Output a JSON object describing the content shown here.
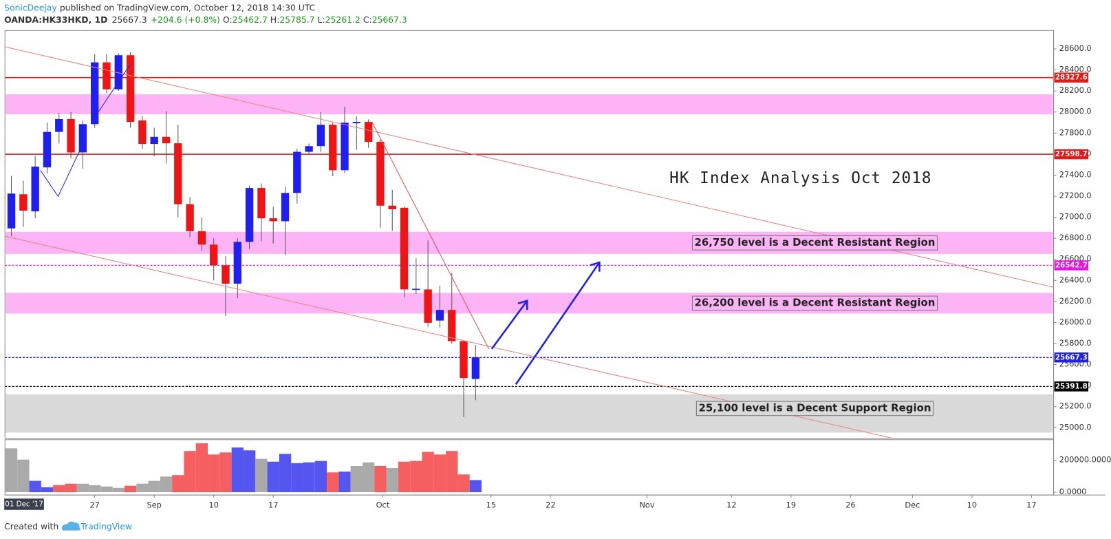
{
  "header": {
    "author": "SonicDeejay",
    "published": "published on TradingView.com, October 12, 2018 14:30 UTC",
    "symbol": "OANDA:HK33HKD, 1D",
    "last": 25667.3,
    "change": "+204.6 (+0.8%)",
    "ohlc": [
      {
        "label": "O:",
        "value": 25462.7
      },
      {
        "label": "H:",
        "value": 25785.7
      },
      {
        "label": "L:",
        "value": 25261.2
      },
      {
        "label": "C:",
        "value": 25667.3
      }
    ]
  },
  "chart_data": {
    "type": "candlestick",
    "title": "HK Index Analysis Oct 2018",
    "open": [
      26894,
      27218,
      27056,
      27474,
      27811,
      27933,
      27616,
      27885,
      28472,
      28216,
      28540,
      27920,
      27697,
      27764,
      27703,
      27124,
      26867,
      26740,
      26544,
      26368,
      26766,
      27278,
      26990,
      26962,
      27231,
      27622,
      27676,
      27879,
      27447,
      27893,
      27906,
      27717,
      27110,
      27090,
      26310,
      26314,
      26018,
      26119,
      25822,
      25462.7
    ],
    "high": [
      27393,
      27346,
      27582,
      27900,
      27990,
      28000,
      27920,
      28550,
      28550,
      28560,
      28570,
      27960,
      27850,
      28010,
      27880,
      27190,
      27000,
      26800,
      26630,
      26800,
      27300,
      27320,
      27100,
      27290,
      27650,
      27700,
      28000,
      27900,
      28050,
      27960,
      27930,
      27740,
      27260,
      27100,
      26610,
      26780,
      26350,
      26470,
      25822,
      25785.7
    ],
    "low": [
      26820,
      26908,
      26990,
      27420,
      27700,
      27560,
      27460,
      27850,
      28180,
      28200,
      27850,
      27650,
      27580,
      27510,
      27000,
      26810,
      26680,
      26400,
      26060,
      26230,
      26700,
      26770,
      26750,
      26640,
      27130,
      27600,
      27620,
      27390,
      27420,
      27640,
      27660,
      26900,
      26870,
      26240,
      26270,
      25960,
      25950,
      25800,
      25100,
      25261.2
    ],
    "close": [
      27225,
      27063,
      27481,
      27811,
      27933,
      27616,
      27885,
      28472,
      28216,
      28540,
      27906,
      27697,
      27764,
      27703,
      27124,
      26867,
      26740,
      26544,
      26368,
      26766,
      27278,
      26990,
      26962,
      27231,
      27622,
      27676,
      27879,
      27447,
      27899,
      27906,
      27717,
      27110,
      27076,
      26314,
      26320,
      25997,
      26119,
      25822,
      25472,
      25667.3
    ],
    "up_color": "#1f1ff0",
    "down_color": "#f01414",
    "xlim": [
      -0.54,
      87.56
    ],
    "xticks": [
      {
        "value": 7,
        "label": "27"
      },
      {
        "value": 12,
        "label": "Sep"
      },
      {
        "value": 17,
        "label": "10"
      },
      {
        "value": 22,
        "label": "17"
      },
      {
        "value": 31.2,
        "label": "Oct"
      },
      {
        "value": 40.3,
        "label": "15"
      },
      {
        "value": 45.3,
        "label": "22"
      },
      {
        "value": 53.4,
        "label": "Nov"
      },
      {
        "value": 60.5,
        "label": "12"
      },
      {
        "value": 65.5,
        "label": "19"
      },
      {
        "value": 70.5,
        "label": "26"
      },
      {
        "value": 75.7,
        "label": "Dec"
      },
      {
        "value": 80.7,
        "label": "10"
      },
      {
        "value": 85.7,
        "label": "17"
      }
    ],
    "cursor_label": "01 Dec '17",
    "ylim": [
      24899,
      28775
    ],
    "yticks": [
      {
        "value": 25000,
        "label": "25000.0"
      },
      {
        "value": 25200,
        "label": "25200.0"
      },
      {
        "value": 25400,
        "label": "25400.0"
      },
      {
        "value": 25600,
        "label": "25600.0"
      },
      {
        "value": 25800,
        "label": "25800.0"
      },
      {
        "value": 26000,
        "label": "26000.0"
      },
      {
        "value": 26200,
        "label": "26200.0"
      },
      {
        "value": 26400,
        "label": "26400.0"
      },
      {
        "value": 26600,
        "label": "26600.0"
      },
      {
        "value": 26800,
        "label": "26800.0"
      },
      {
        "value": 27000,
        "label": "27000.0"
      },
      {
        "value": 27200,
        "label": "27200.0"
      },
      {
        "value": 27400,
        "label": "27400.0"
      },
      {
        "value": 27600,
        "label": "27600.0"
      },
      {
        "value": 27800,
        "label": "27800.0"
      },
      {
        "value": 28000,
        "label": "28000.0"
      },
      {
        "value": 28200,
        "label": "28200.0"
      },
      {
        "value": 28400,
        "label": "28400.0"
      },
      {
        "value": 28600,
        "label": "28600.0"
      }
    ],
    "zones": [
      {
        "from": 27979,
        "to": 28168,
        "color": "#fdb4f6"
      },
      {
        "from": 26652,
        "to": 26861,
        "color": "#fdb4f6",
        "label": "26,750 level is a Decent Resistant Region"
      },
      {
        "from": 26085,
        "to": 26281,
        "color": "#fdb4f6",
        "label": "26,200 level is a Decent Resistant Region"
      },
      {
        "from": 24953,
        "to": 25317,
        "color": "#d9d9d9",
        "label": "25,100 level is a Decent Support Region"
      }
    ],
    "price_lines": [
      {
        "value": 28327.6,
        "color": "#f01414",
        "style": "solid"
      },
      {
        "value": 27598.7,
        "color": "#f01414",
        "style": "solid"
      },
      {
        "value": 26542.7,
        "color": "#ee11ee",
        "style": "dotted"
      },
      {
        "value": 25667.3,
        "color": "#1f1ff0",
        "style": "dotted"
      },
      {
        "value": 25391.8,
        "color": "#000000",
        "style": "dotted"
      }
    ],
    "volume": {
      "values": [
        275000,
        204000,
        71000,
        31000,
        44000,
        53000,
        53000,
        44000,
        36000,
        27000,
        40000,
        53000,
        71000,
        98000,
        107000,
        258000,
        307000,
        236000,
        249000,
        280000,
        262000,
        209000,
        191000,
        240000,
        182000,
        187000,
        196000,
        124000,
        129000,
        164000,
        187000,
        164000,
        151000,
        191000,
        196000,
        253000,
        236000,
        258000,
        111000,
        76000
      ],
      "colors": [
        "#aaaaaa",
        "#aaaaaa",
        "#5555f0",
        "#5555f0",
        "#f55f5f",
        "#f55f5f",
        "#aaaaaa",
        "#aaaaaa",
        "#aaaaaa",
        "#aaaaaa",
        "#f55f5f",
        "#aaaaaa",
        "#aaaaaa",
        "#aaaaaa",
        "#f55f5f",
        "#f55f5f",
        "#f55f5f",
        "#f55f5f",
        "#f55f5f",
        "#5555f0",
        "#5555f0",
        "#aaaaaa",
        "#5555f0",
        "#5555f0",
        "#5555f0",
        "#5555f0",
        "#5555f0",
        "#f55f5f",
        "#5555f0",
        "#aaaaaa",
        "#aaaaaa",
        "#f55f5f",
        "#aaaaaa",
        "#f55f5f",
        "#f55f5f",
        "#f55f5f",
        "#f55f5f",
        "#f55f5f",
        "#f55f5f",
        "#5555f0"
      ],
      "ylim": [
        -17778,
        328889
      ],
      "yticks": [
        {
          "value": 0,
          "label": "0.0000"
        },
        {
          "value": 200000,
          "label": "200000.0000"
        }
      ]
    }
  },
  "footer": {
    "text": "Created with",
    "brand": "TradingView"
  }
}
